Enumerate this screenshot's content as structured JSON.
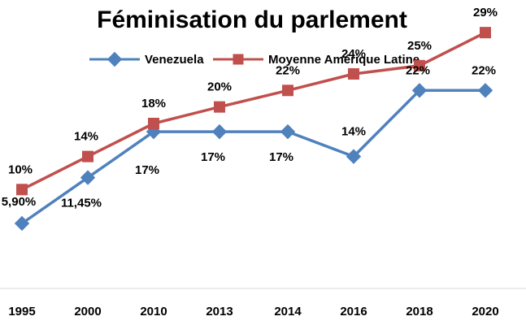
{
  "chart_data": {
    "type": "line",
    "title": "Féminisation du parlement",
    "xlabel": "",
    "ylabel": "",
    "categories": [
      "1995",
      "2000",
      "2010",
      "2013",
      "2014",
      "2016",
      "2018",
      "2020"
    ],
    "ylim": [
      0,
      35
    ],
    "grid": false,
    "legend_position": "top",
    "series": [
      {
        "name": "Venezuela",
        "color": "#4F81BD",
        "marker": "diamond",
        "values": [
          5.9,
          11.45,
          17,
          17,
          17,
          14,
          22,
          22
        ],
        "labels": [
          "5,90%",
          "11,45%",
          "17%",
          "17%",
          "17%",
          "14%",
          "22%",
          "22%"
        ]
      },
      {
        "name": "Moyenne Amérique Latine",
        "color": "#C0504D",
        "marker": "square",
        "values": [
          10,
          14,
          18,
          20,
          22,
          24,
          25,
          29
        ],
        "labels": [
          "10%",
          "14%",
          "18%",
          "20%",
          "22%",
          "24%",
          "25%",
          "29%"
        ]
      }
    ]
  }
}
